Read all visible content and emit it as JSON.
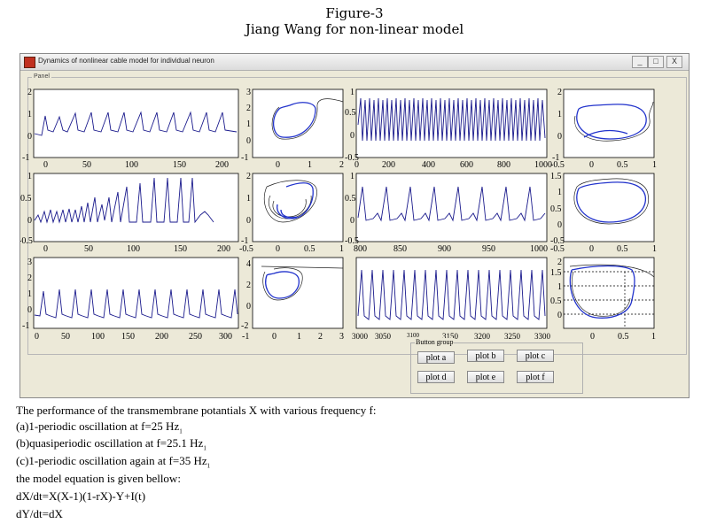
{
  "figure": {
    "title": "Figure-3",
    "subtitle": "Jiang Wang for non-linear model"
  },
  "window": {
    "title": "Dynamics of nonlinear cable model for individual neuron",
    "controls": [
      "_",
      "□",
      "X"
    ],
    "panel_label": "Panel"
  },
  "plots": {
    "row1": {
      "a_x_ticks": [
        "0",
        "50",
        "100",
        "150",
        "200"
      ],
      "a_y_ticks": [
        "2",
        "1",
        "0",
        "-1"
      ],
      "b_x_ticks": [
        "0",
        "1",
        "2"
      ],
      "b_y_ticks": [
        "3",
        "2",
        "1",
        "0",
        "-1"
      ],
      "c_x_ticks": [
        "0",
        "200",
        "400",
        "600",
        "800",
        "1000"
      ],
      "c_y_ticks": [
        "1",
        "0.5",
        "0",
        "-0.5"
      ],
      "d_x_ticks": [
        "-0.5",
        "0",
        "0.5",
        "1"
      ],
      "d_y_ticks": [
        "2",
        "1",
        "0",
        "-1"
      ]
    },
    "row2": {
      "a_x_ticks": [
        "0",
        "50",
        "100",
        "150",
        "200"
      ],
      "a_y_ticks": [
        "1",
        "0.5",
        "0",
        "-0.5"
      ],
      "b_x_ticks": [
        "-0.5",
        "0",
        "0.5",
        "1"
      ],
      "b_y_ticks": [
        "2",
        "1",
        "0",
        "-1"
      ],
      "c_x_ticks": [
        "800",
        "850",
        "900",
        "950",
        "1000"
      ],
      "c_y_ticks": [
        "1",
        "0.5",
        "0",
        "-0.5"
      ],
      "d_x_ticks": [
        "-0.5",
        "0",
        "0.5",
        "1"
      ],
      "d_y_ticks": [
        "1.5",
        "1",
        "0.5",
        "0",
        "-0.5"
      ]
    },
    "row3": {
      "a_x_ticks": [
        "0",
        "50",
        "100",
        "150",
        "200",
        "250",
        "300"
      ],
      "a_y_ticks": [
        "3",
        "2",
        "1",
        "0",
        "-1"
      ],
      "b_x_ticks": [
        "-1",
        "0",
        "1",
        "2",
        "3"
      ],
      "b_y_ticks": [
        "4",
        "2",
        "0",
        "-2"
      ],
      "c_x_ticks": [
        "3000",
        "3050",
        "3100",
        "3150",
        "3200",
        "3250",
        "3300"
      ],
      "c_y_ticks": [
        "3",
        "2",
        "1",
        "0",
        "-1"
      ],
      "d_x_ticks": [
        "0",
        "0.5",
        "1"
      ],
      "d_y_ticks": [
        "2",
        "1.5",
        "1",
        "0.5",
        "0"
      ]
    }
  },
  "button_group": {
    "label": "Button group",
    "buttons": [
      "plot a",
      "plot b",
      "plot c",
      "plot d",
      "plot e",
      "plot f"
    ]
  },
  "description": {
    "line1": "The performance of the transmembrane potantials X  with various frequency f:",
    "line2": "(a)1-periodic oscillation at f=25 Hz",
    "line3": "(b)quasiperiodic oscillation at f=25.1 Hz",
    "line4": "(c)1-periodic oscillation again at f=35 Hz",
    "line5": "the model equation is given bellow:",
    "line6": "dX/dt=X(X-1)(1-rX)-Y+I(t)",
    "line7": "dY/dt=dX",
    "sub": "1"
  }
}
